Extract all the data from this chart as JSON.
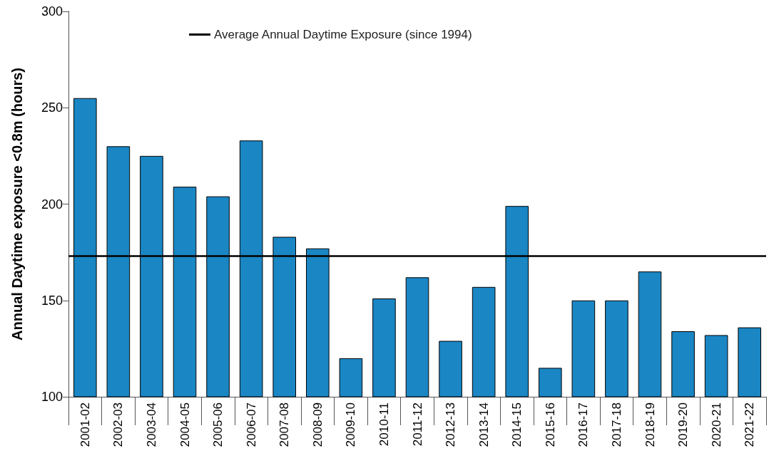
{
  "chart_data": {
    "type": "bar",
    "ylabel": "Annual Daytime exposure <0.8m (hours)",
    "categories": [
      "2001-02",
      "2002-03",
      "2003-04",
      "2004-05",
      "2005-06",
      "2006-07",
      "2007-08",
      "2008-09",
      "2009-10",
      "2010-11",
      "2011-12",
      "2012-13",
      "2013-14",
      "2014-15",
      "2015-16",
      "2016-17",
      "2017-18",
      "2018-19",
      "2019-20",
      "2020-21",
      "2021-22"
    ],
    "values": [
      255,
      230,
      225,
      209,
      204,
      233,
      183,
      177,
      120,
      151,
      162,
      129,
      157,
      199,
      115,
      150,
      150,
      165,
      134,
      132,
      136
    ],
    "color": "#1a86c4",
    "ylim": [
      100,
      300
    ],
    "yticks": [
      100,
      150,
      200,
      250,
      300
    ],
    "grid": false,
    "legend": "top",
    "ref_lines": [
      {
        "axis": "y",
        "value": 173,
        "label": "Average Annual Daytime Exposure (since 1994)",
        "color": "#000000",
        "line_style": "solid"
      }
    ]
  }
}
